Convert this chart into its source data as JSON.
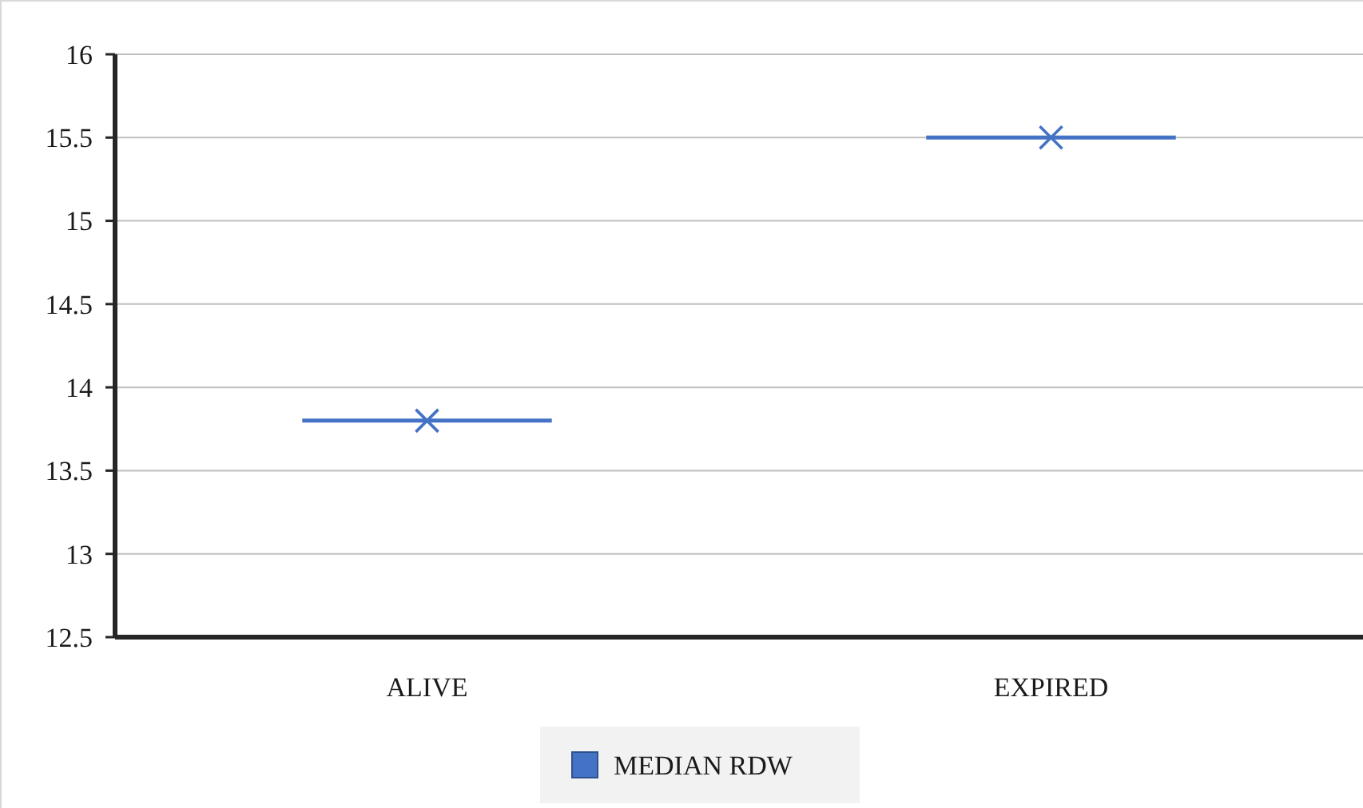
{
  "chart_data": {
    "type": "box",
    "categories": [
      "ALIVE",
      "EXPIRED"
    ],
    "series": [
      {
        "name": "MEDIAN RDW",
        "color": "#4472c4",
        "boxes": [
          {
            "low": 13.8,
            "q1": 13.8,
            "median": 13.8,
            "q3": 13.8,
            "high": 13.8,
            "mean": 13.8
          },
          {
            "low": 15.5,
            "q1": 15.5,
            "median": 15.5,
            "q3": 15.5,
            "high": 15.5,
            "mean": 15.5
          }
        ]
      }
    ],
    "ylim": [
      12.5,
      16
    ],
    "yticks": [
      12.5,
      13,
      13.5,
      14,
      14.5,
      15,
      15.5,
      16
    ],
    "grid": "y",
    "legend": "bottom",
    "marker": "cross"
  }
}
